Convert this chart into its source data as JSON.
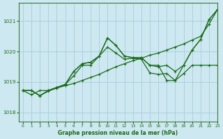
{
  "title": "Graphe pression niveau de la mer (hPa)",
  "background_color": "#cde8f0",
  "grid_color": "#9fc8d8",
  "line_color": "#1a6b1a",
  "xlim": [
    -0.5,
    23
  ],
  "ylim": [
    1017.7,
    1021.6
  ],
  "yticks": [
    1018,
    1019,
    1020,
    1021
  ],
  "xticks": [
    0,
    1,
    2,
    3,
    4,
    5,
    6,
    7,
    8,
    9,
    10,
    11,
    12,
    13,
    14,
    15,
    16,
    17,
    18,
    19,
    20,
    21,
    22,
    23
  ],
  "series": [
    [
      1018.72,
      1018.72,
      1018.55,
      1018.7,
      1018.8,
      1018.88,
      1018.95,
      1019.05,
      1019.15,
      1019.25,
      1019.38,
      1019.5,
      1019.6,
      1019.7,
      1019.78,
      1019.88,
      1019.95,
      1020.05,
      1020.15,
      1020.25,
      1020.38,
      1020.5,
      1020.9,
      1021.38
    ],
    [
      1018.72,
      1018.72,
      1018.55,
      1018.72,
      1018.82,
      1018.92,
      1019.35,
      1019.6,
      1019.65,
      1019.85,
      1020.45,
      1020.2,
      1019.85,
      1019.8,
      1019.8,
      1019.55,
      1019.5,
      1019.55,
      1019.35,
      1019.55,
      1020.05,
      1020.4,
      1021.05,
      1021.38
    ],
    [
      1018.72,
      1018.58,
      1018.72,
      1018.72,
      1018.82,
      1018.92,
      1019.2,
      1019.55,
      1019.55,
      1019.85,
      1020.15,
      1019.95,
      1019.75,
      1019.78,
      1019.75,
      1019.3,
      1019.25,
      1019.28,
      1019.05,
      1019.28,
      1019.55,
      1019.55,
      1019.55,
      1019.55
    ],
    [
      1018.72,
      1018.72,
      1018.55,
      1018.72,
      1018.82,
      1018.92,
      1019.35,
      1019.6,
      1019.65,
      1019.85,
      1020.45,
      1020.2,
      1019.85,
      1019.8,
      1019.8,
      1019.55,
      1019.55,
      1019.05,
      1019.05,
      1019.55,
      1020.05,
      1020.4,
      1021.05,
      1021.38
    ]
  ]
}
